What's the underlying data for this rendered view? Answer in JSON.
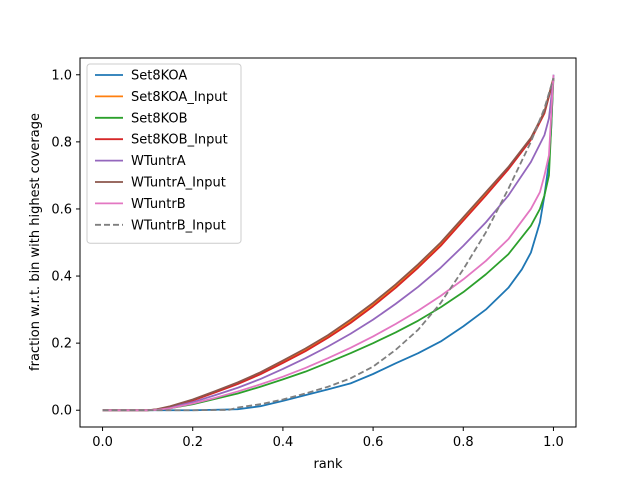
{
  "chart_data": {
    "type": "line",
    "title": "",
    "xlabel": "rank",
    "ylabel": "fraction w.r.t. bin with highest coverage",
    "xlim": [
      -0.05,
      1.05
    ],
    "ylim": [
      -0.05,
      1.05
    ],
    "x_ticks": [
      0.0,
      0.2,
      0.4,
      0.6,
      0.8,
      1.0
    ],
    "x_tick_labels": [
      "0.0",
      "0.2",
      "0.4",
      "0.6",
      "0.8",
      "1.0"
    ],
    "y_ticks": [
      0.0,
      0.2,
      0.4,
      0.6,
      0.8,
      1.0
    ],
    "y_tick_labels": [
      "0.0",
      "0.2",
      "0.4",
      "0.6",
      "0.8",
      "1.0"
    ],
    "grid": false,
    "legend_position": "top-left",
    "series": [
      {
        "name": "Set8KOA",
        "color": "#1f77b4",
        "dashed": false,
        "x": [
          0,
          0.1,
          0.2,
          0.3,
          0.35,
          0.4,
          0.45,
          0.5,
          0.55,
          0.6,
          0.65,
          0.7,
          0.75,
          0.8,
          0.85,
          0.9,
          0.93,
          0.95,
          0.97,
          0.98,
          0.99,
          0.995,
          1.0
        ],
        "y": [
          0,
          0,
          0,
          0.003,
          0.012,
          0.028,
          0.045,
          0.062,
          0.08,
          0.108,
          0.14,
          0.17,
          0.205,
          0.25,
          0.3,
          0.365,
          0.42,
          0.47,
          0.56,
          0.64,
          0.74,
          0.84,
          1.0
        ]
      },
      {
        "name": "Set8KOA_Input",
        "color": "#ff7f0e",
        "dashed": false,
        "x": [
          0,
          0.1,
          0.12,
          0.15,
          0.2,
          0.25,
          0.3,
          0.35,
          0.4,
          0.45,
          0.5,
          0.55,
          0.6,
          0.65,
          0.7,
          0.75,
          0.8,
          0.85,
          0.9,
          0.95,
          0.98,
          1.0
        ],
        "y": [
          0,
          0,
          0.002,
          0.01,
          0.03,
          0.055,
          0.08,
          0.11,
          0.145,
          0.18,
          0.22,
          0.265,
          0.315,
          0.37,
          0.43,
          0.495,
          0.57,
          0.645,
          0.72,
          0.81,
          0.89,
          0.99
        ]
      },
      {
        "name": "Set8KOB",
        "color": "#2ca02c",
        "dashed": false,
        "x": [
          0,
          0.1,
          0.12,
          0.15,
          0.2,
          0.25,
          0.3,
          0.35,
          0.4,
          0.45,
          0.5,
          0.55,
          0.6,
          0.65,
          0.7,
          0.75,
          0.8,
          0.85,
          0.9,
          0.95,
          0.97,
          0.98,
          0.99,
          1.0
        ],
        "y": [
          0,
          0,
          0.001,
          0.006,
          0.018,
          0.034,
          0.05,
          0.07,
          0.092,
          0.115,
          0.142,
          0.17,
          0.2,
          0.232,
          0.267,
          0.307,
          0.352,
          0.405,
          0.465,
          0.55,
          0.6,
          0.64,
          0.7,
          0.99
        ]
      },
      {
        "name": "Set8KOB_Input",
        "color": "#d62728",
        "dashed": false,
        "x": [
          0,
          0.1,
          0.12,
          0.15,
          0.2,
          0.25,
          0.3,
          0.35,
          0.4,
          0.45,
          0.5,
          0.55,
          0.6,
          0.65,
          0.7,
          0.75,
          0.8,
          0.85,
          0.9,
          0.95,
          0.98,
          1.0
        ],
        "y": [
          0,
          0,
          0.002,
          0.01,
          0.029,
          0.053,
          0.078,
          0.107,
          0.141,
          0.176,
          0.216,
          0.26,
          0.31,
          0.365,
          0.425,
          0.49,
          0.565,
          0.64,
          0.718,
          0.806,
          0.885,
          0.985
        ]
      },
      {
        "name": "WTuntrA",
        "color": "#9467bd",
        "dashed": false,
        "x": [
          0,
          0.1,
          0.12,
          0.15,
          0.2,
          0.25,
          0.3,
          0.35,
          0.4,
          0.45,
          0.5,
          0.55,
          0.6,
          0.65,
          0.7,
          0.75,
          0.8,
          0.85,
          0.9,
          0.95,
          0.98,
          0.99,
          1.0
        ],
        "y": [
          0,
          0,
          0.002,
          0.008,
          0.024,
          0.045,
          0.067,
          0.093,
          0.123,
          0.155,
          0.19,
          0.228,
          0.27,
          0.317,
          0.368,
          0.425,
          0.49,
          0.56,
          0.64,
          0.74,
          0.82,
          0.87,
          0.99
        ]
      },
      {
        "name": "WTuntrA_Input",
        "color": "#8c564b",
        "dashed": false,
        "x": [
          0,
          0.1,
          0.12,
          0.15,
          0.2,
          0.25,
          0.3,
          0.35,
          0.4,
          0.45,
          0.5,
          0.55,
          0.6,
          0.65,
          0.7,
          0.75,
          0.8,
          0.85,
          0.9,
          0.95,
          0.98,
          1.0
        ],
        "y": [
          0,
          0,
          0.003,
          0.012,
          0.032,
          0.057,
          0.083,
          0.113,
          0.148,
          0.184,
          0.224,
          0.27,
          0.32,
          0.375,
          0.435,
          0.5,
          0.575,
          0.65,
          0.725,
          0.812,
          0.89,
          0.99
        ]
      },
      {
        "name": "WTuntrB",
        "color": "#e377c2",
        "dashed": false,
        "x": [
          0,
          0.1,
          0.12,
          0.15,
          0.2,
          0.25,
          0.3,
          0.35,
          0.4,
          0.45,
          0.5,
          0.55,
          0.6,
          0.65,
          0.7,
          0.75,
          0.8,
          0.85,
          0.9,
          0.95,
          0.97,
          0.98,
          0.99,
          1.0
        ],
        "y": [
          0,
          0,
          0.001,
          0.006,
          0.02,
          0.037,
          0.056,
          0.077,
          0.1,
          0.126,
          0.155,
          0.186,
          0.22,
          0.257,
          0.297,
          0.341,
          0.39,
          0.445,
          0.51,
          0.6,
          0.65,
          0.7,
          0.76,
          1.0
        ]
      },
      {
        "name": "WTuntrB_Input",
        "color": "#7f7f7f",
        "dashed": true,
        "x": [
          0,
          0.1,
          0.2,
          0.28,
          0.3,
          0.35,
          0.4,
          0.45,
          0.5,
          0.55,
          0.6,
          0.65,
          0.7,
          0.75,
          0.8,
          0.85,
          0.9,
          0.95,
          0.98,
          1.0
        ],
        "y": [
          0,
          0,
          0,
          0.001,
          0.008,
          0.018,
          0.032,
          0.05,
          0.07,
          0.095,
          0.13,
          0.18,
          0.24,
          0.32,
          0.42,
          0.53,
          0.66,
          0.8,
          0.9,
          0.99
        ]
      }
    ]
  }
}
